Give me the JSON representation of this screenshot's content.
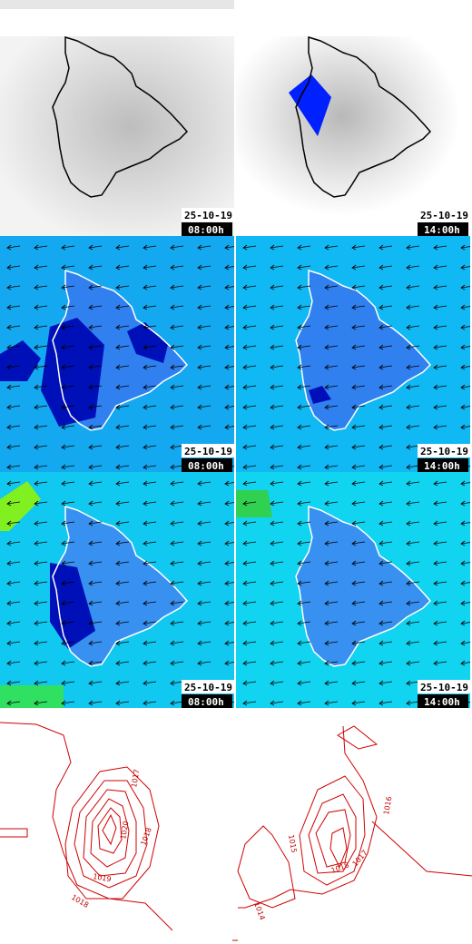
{
  "panels": [
    {
      "date": "25-10-19",
      "time": "08:00h"
    },
    {
      "date": "25-10-19",
      "time": "14:00h"
    },
    {
      "date": "25-10-19",
      "time": "08:00h"
    },
    {
      "date": "25-10-19",
      "time": "14:00h"
    },
    {
      "date": "25-10-19",
      "time": "08:00h"
    },
    {
      "date": "25-10-19",
      "time": "14:00h"
    }
  ],
  "contour_labels": {
    "left": [
      "1017",
      "1020",
      "1018",
      "1019",
      "1018"
    ],
    "right": [
      "1015",
      "1016",
      "1018",
      "1017",
      "1014"
    ]
  }
}
